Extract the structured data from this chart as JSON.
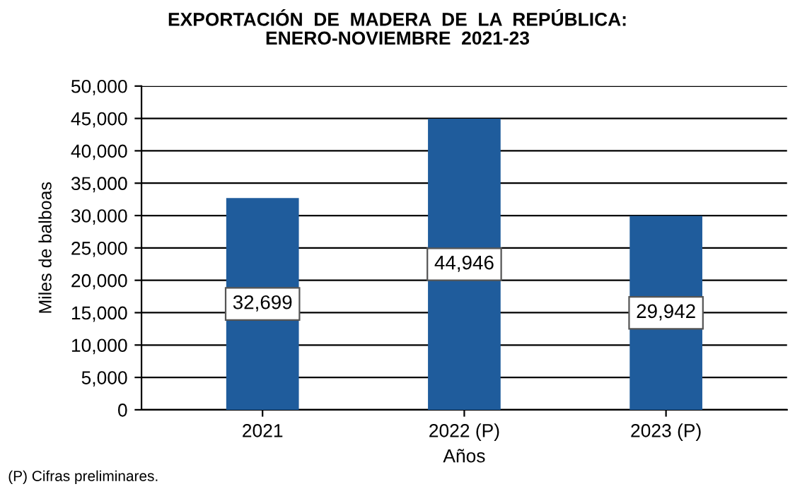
{
  "chart_data": {
    "type": "bar",
    "title": "EXPORTACIÓN  DE  MADERA  DE  LA  REPÚBLICA:\nENERO-NOVIEMBRE  2021-23",
    "xlabel": "Años",
    "ylabel": "Miles de balboas",
    "categories": [
      "2021",
      "2022 (P)",
      "2023 (P)"
    ],
    "values": [
      32699,
      44946,
      29942
    ],
    "value_labels": [
      "32,699",
      "44,946",
      "29,942"
    ],
    "color": "#1f5c9c",
    "ylim": [
      0,
      50000
    ],
    "yticks": [
      {
        "value": 0,
        "label": "0"
      },
      {
        "value": 5000,
        "label": "5,000"
      },
      {
        "value": 10000,
        "label": "10,000"
      },
      {
        "value": 15000,
        "label": "15,000"
      },
      {
        "value": 20000,
        "label": "20,000"
      },
      {
        "value": 25000,
        "label": "25,000"
      },
      {
        "value": 30000,
        "label": "30,000"
      },
      {
        "value": 35000,
        "label": "35,000"
      },
      {
        "value": 40000,
        "label": "40,000"
      },
      {
        "value": 45000,
        "label": "45,000"
      },
      {
        "value": 50000,
        "label": "50,000"
      }
    ],
    "grid": "y",
    "annotations": [
      "(P) Cifras preliminares."
    ]
  }
}
